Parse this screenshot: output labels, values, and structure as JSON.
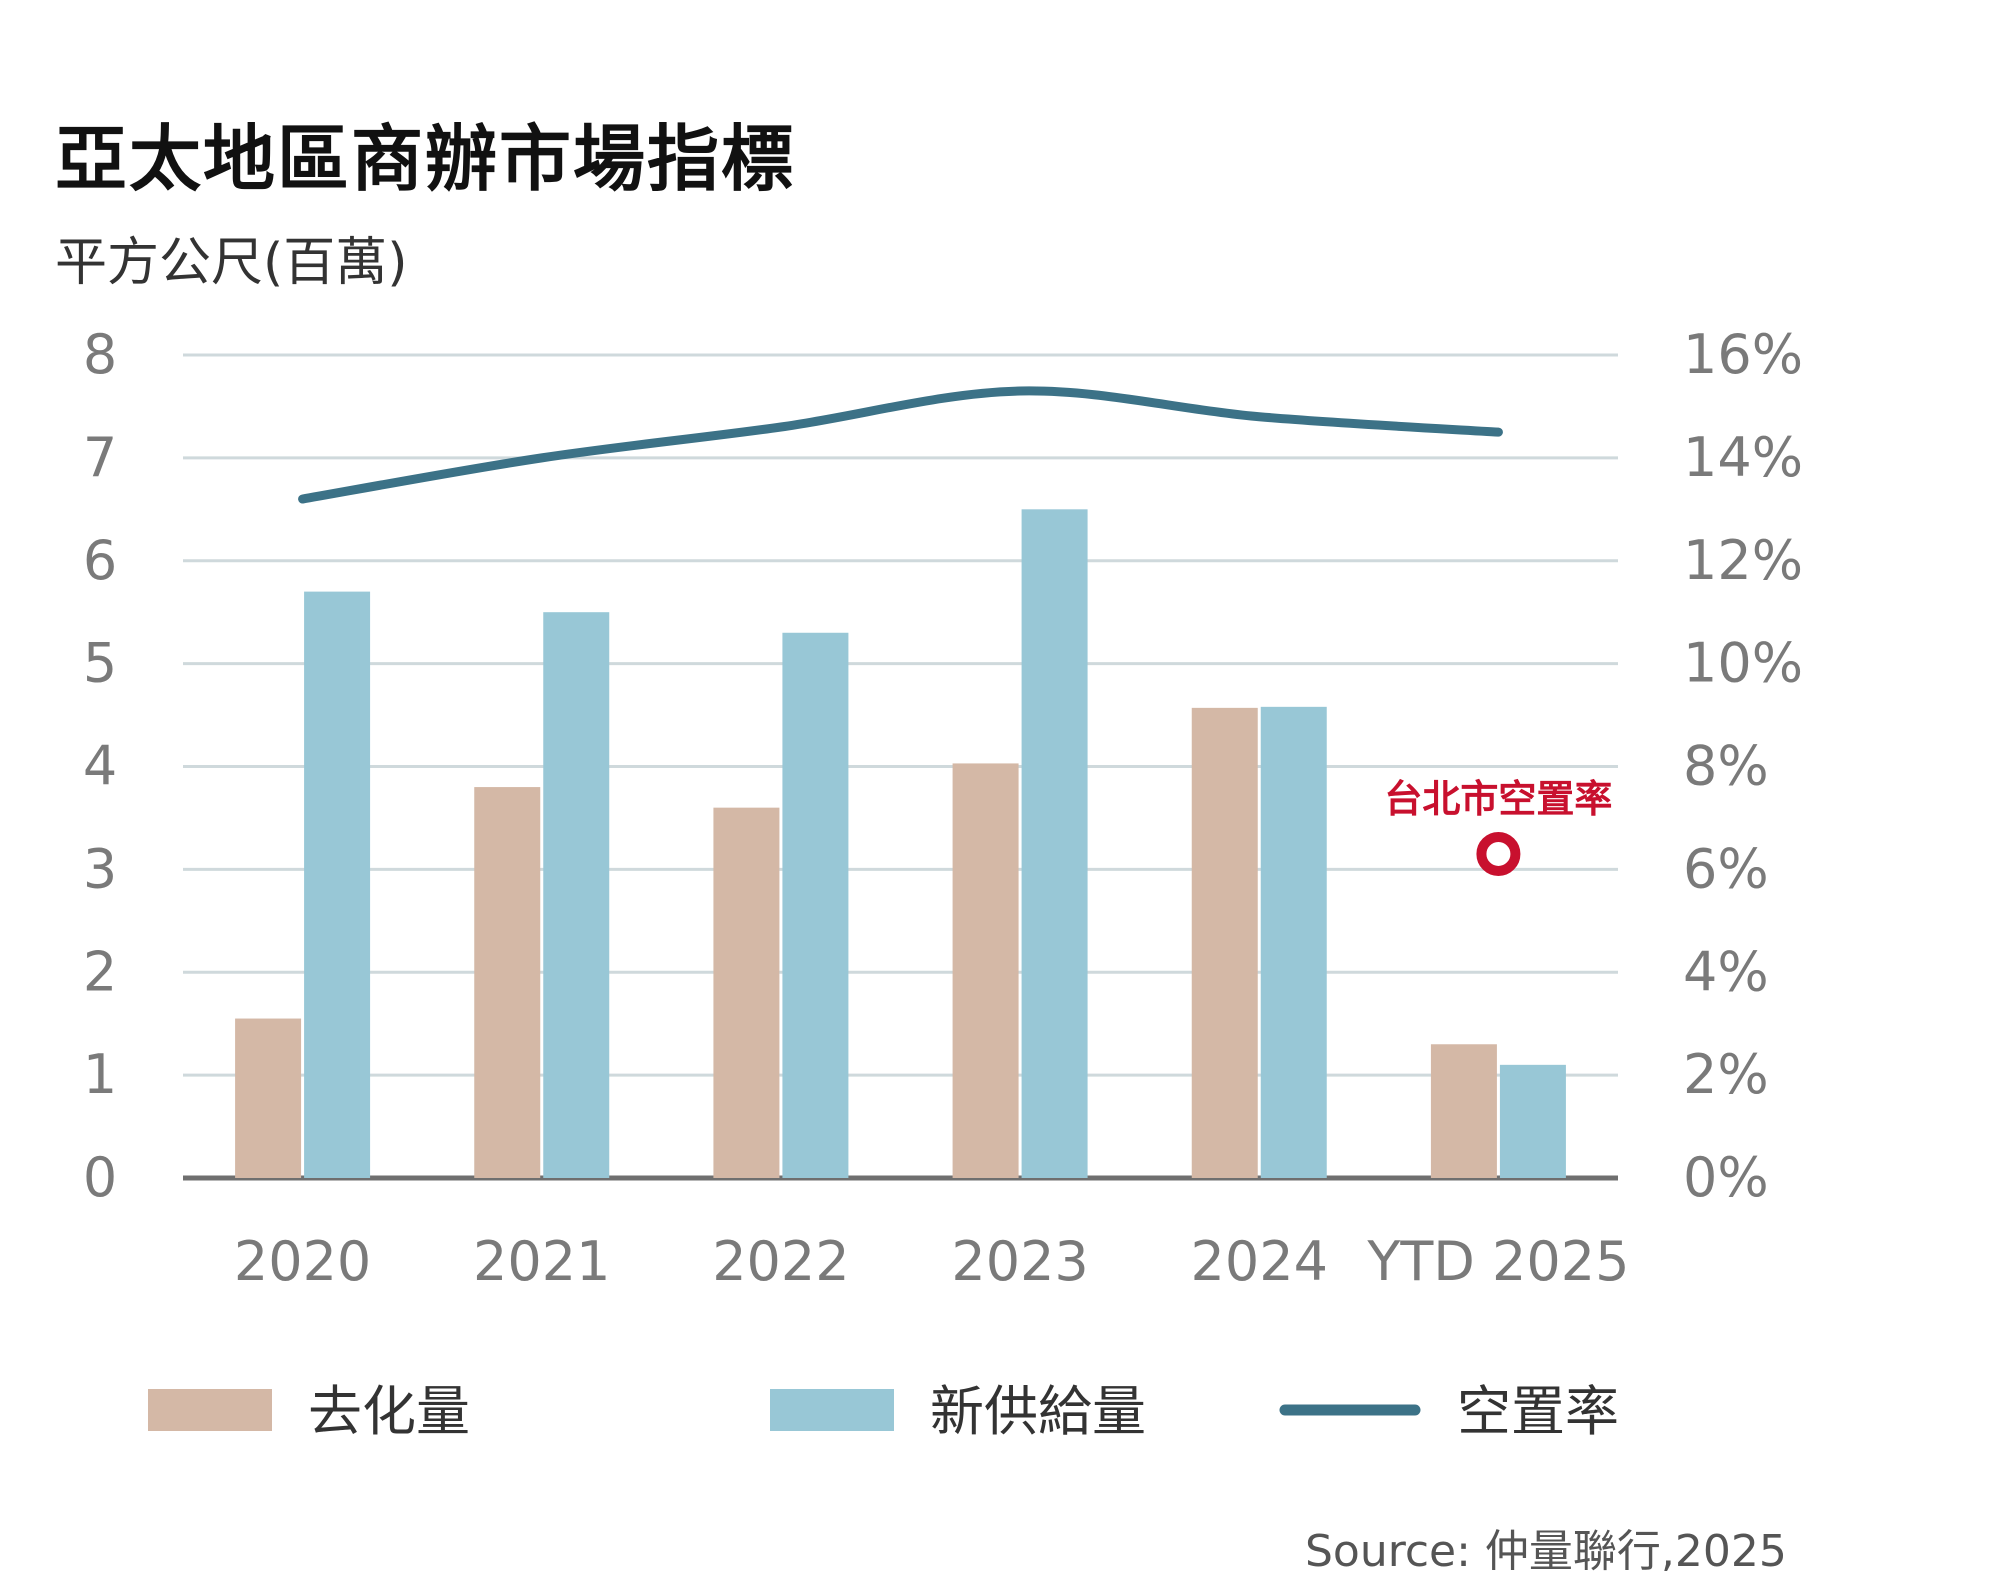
{
  "title": "亞太地區商辦市場指標",
  "subtitle": "平方公尺(百萬)",
  "source": "Source: 仲量聯行,2025",
  "colors": {
    "absorption": "#d4b8a6",
    "supply": "#98c7d6",
    "vacancy": "#3c7287",
    "annotation": "#c8102e",
    "grid": "#cfd9dc",
    "axis": "#6f6f6f"
  },
  "chart_data": {
    "type": "bar",
    "categories": [
      "2020",
      "2021",
      "2022",
      "2023",
      "2024",
      "YTD 2025"
    ],
    "series": [
      {
        "name": "去化量",
        "type": "bar",
        "axis": "left",
        "values": [
          1.55,
          3.8,
          3.6,
          4.03,
          4.57,
          1.3
        ]
      },
      {
        "name": "新供給量",
        "type": "bar",
        "axis": "left",
        "values": [
          5.7,
          5.5,
          5.3,
          6.5,
          4.58,
          1.1
        ]
      },
      {
        "name": "空置率",
        "type": "line",
        "axis": "right",
        "values": [
          13.2,
          14.0,
          14.6,
          15.3,
          14.8,
          14.5
        ]
      }
    ],
    "y_left": {
      "ylim": [
        0,
        8
      ],
      "ticks": [
        "0",
        "1",
        "2",
        "3",
        "4",
        "5",
        "6",
        "7",
        "8"
      ]
    },
    "y_right": {
      "ylim": [
        0,
        16
      ],
      "ticks": [
        "0%",
        "2%",
        "4%",
        "6%",
        "8%",
        "10%",
        "12%",
        "14%",
        "16%"
      ]
    },
    "grid": true,
    "legend_position": "bottom",
    "annotation": {
      "label": "台北市空置率",
      "category": "YTD 2025",
      "value": 6.3,
      "axis": "right"
    }
  }
}
